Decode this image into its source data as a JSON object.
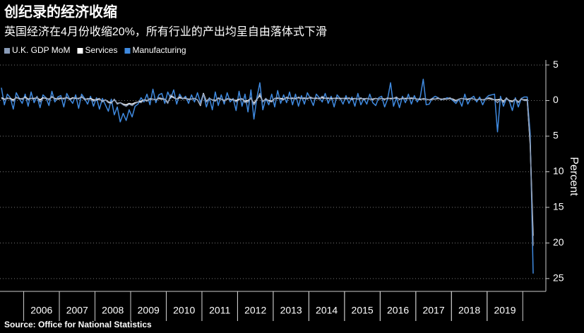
{
  "chart_data": {
    "type": "line",
    "title": "创纪录的经济收缩",
    "subtitle": "英国经济在4月份收缩20%，所有行业的产出均呈自由落体式下滑",
    "y_label": "Percent",
    "source": "Source: Office for National Statistics",
    "categories": [
      null,
      null,
      null,
      null,
      null,
      null,
      null,
      null,
      null,
      null,
      null,
      null,
      null,
      null,
      "2006",
      null,
      null,
      null,
      null,
      null,
      null,
      null,
      null,
      null,
      null,
      null,
      "2007",
      null,
      null,
      null,
      null,
      null,
      null,
      null,
      null,
      null,
      null,
      null,
      "2008",
      null,
      null,
      null,
      null,
      null,
      null,
      null,
      null,
      null,
      null,
      null,
      "2009",
      null,
      null,
      null,
      null,
      null,
      null,
      null,
      null,
      null,
      null,
      null,
      "2010",
      null,
      null,
      null,
      null,
      null,
      null,
      null,
      null,
      null,
      null,
      null,
      "2011",
      null,
      null,
      null,
      null,
      null,
      null,
      null,
      null,
      null,
      null,
      null,
      "2012",
      null,
      null,
      null,
      null,
      null,
      null,
      null,
      null,
      null,
      null,
      null,
      "2013",
      null,
      null,
      null,
      null,
      null,
      null,
      null,
      null,
      null,
      null,
      null,
      "2014",
      null,
      null,
      null,
      null,
      null,
      null,
      null,
      null,
      null,
      null,
      null,
      "2015",
      null,
      null,
      null,
      null,
      null,
      null,
      null,
      null,
      null,
      null,
      null,
      "2016",
      null,
      null,
      null,
      null,
      null,
      null,
      null,
      null,
      null,
      null,
      null,
      "2017",
      null,
      null,
      null,
      null,
      null,
      null,
      null,
      null,
      null,
      null,
      null,
      "2018",
      null,
      null,
      null,
      null,
      null,
      null,
      null,
      null,
      null,
      null,
      null,
      "2019",
      null,
      null,
      null,
      null,
      null,
      null,
      null,
      null,
      null
    ],
    "series": [
      {
        "name": "U.K. GDP MoM",
        "color": "#8a9cb8",
        "values": [
          0.3,
          0.1,
          0.4,
          0.2,
          -0.1,
          0.5,
          0.2,
          0.3,
          0.4,
          0.1,
          0.3,
          0.2,
          0.5,
          -0.2,
          0.3,
          0.4,
          0.1,
          0.6,
          0.2,
          0.3,
          0.4,
          0.2,
          0.5,
          0.1,
          0.3,
          0.4,
          0.2,
          0.6,
          0.1,
          0.3,
          0.2,
          -0.1,
          0.2,
          0.3,
          -0.2,
          0.1,
          -0.3,
          -0.4,
          0.2,
          -0.5,
          -0.3,
          -0.6,
          -0.8,
          -0.5,
          -0.7,
          -0.4,
          -0.2,
          -0.3,
          0.1,
          -0.1,
          0.3,
          0.2,
          0.1,
          0.4,
          0.3,
          0.2,
          -0.4,
          0.8,
          0.5,
          0.2,
          0.6,
          0.3,
          0.4,
          0.1,
          0.2,
          0.3,
          0.1,
          -0.6,
          0.9,
          -0.2,
          0.3,
          0.1,
          -0.1,
          0.4,
          0.2,
          -0.1,
          0.3,
          0.1,
          0.2,
          -0.2,
          0.1,
          0.3,
          -0.3,
          -0.2,
          0.4,
          -0.6,
          0.1,
          1.0,
          -0.2,
          0.3,
          -0.1,
          -0.2,
          0.3,
          0.4,
          0.2,
          0.1,
          0.5,
          0.3,
          0.4,
          0.2,
          0.5,
          0.3,
          0.4,
          0.2,
          0.5,
          0.3,
          0.4,
          0.2,
          0.6,
          0.3,
          0.4,
          0.2,
          0.3,
          0.4,
          0.2,
          0.3,
          0.2,
          0.4,
          0.1,
          0.3,
          0.2,
          0.4,
          0.1,
          0.3,
          0.2,
          0.1,
          0.3,
          0.2,
          0.3,
          0.1,
          0.4,
          0.2,
          0.3,
          0.5,
          0.1,
          0.4,
          0.2,
          0.3,
          0.4,
          0.3,
          0.2,
          0.1,
          0.3,
          0.2,
          0.1,
          0.3,
          0.2,
          0.4,
          0.1,
          0.3,
          0.2,
          0.4,
          0.1,
          -0.1,
          0.2,
          0.3,
          0.2,
          0.1,
          0.3,
          0.2,
          0.1,
          0.2,
          0.1,
          0.2,
          0.4,
          0.3,
          0.1,
          -0.3,
          0.2,
          -0.3,
          0.4,
          -0.1,
          -0.2,
          0.2,
          -0.3,
          0.3,
          0.0,
          0.0,
          -5.8,
          -20.4
        ]
      },
      {
        "name": "Services",
        "color": "#ffffff",
        "values": [
          0.4,
          0.2,
          0.3,
          0.3,
          0.1,
          0.4,
          0.3,
          0.2,
          0.5,
          0.2,
          0.3,
          0.3,
          0.4,
          0.1,
          0.4,
          0.3,
          0.2,
          0.5,
          0.3,
          0.2,
          0.3,
          0.3,
          0.4,
          0.2,
          0.4,
          0.3,
          0.3,
          0.5,
          0.2,
          0.2,
          0.3,
          0.1,
          0.1,
          0.2,
          -0.1,
          0.1,
          -0.2,
          -0.3,
          0.1,
          -0.4,
          -0.3,
          -0.5,
          -0.6,
          -0.4,
          -0.5,
          -0.3,
          -0.2,
          -0.1,
          0.1,
          0.0,
          0.2,
          0.2,
          0.1,
          0.3,
          0.2,
          0.2,
          -0.3,
          0.6,
          0.4,
          0.2,
          0.4,
          0.3,
          0.3,
          0.2,
          0.2,
          0.3,
          0.1,
          -0.7,
          1.0,
          -0.1,
          0.3,
          0.1,
          0.0,
          0.3,
          0.2,
          0.0,
          0.2,
          0.2,
          0.1,
          0.0,
          0.2,
          0.2,
          -0.1,
          0.0,
          0.3,
          -0.4,
          0.2,
          0.7,
          -0.1,
          0.2,
          0.0,
          -0.1,
          0.3,
          0.3,
          0.3,
          0.2,
          0.4,
          0.3,
          0.3,
          0.3,
          0.4,
          0.3,
          0.3,
          0.3,
          0.4,
          0.3,
          0.3,
          0.3,
          0.4,
          0.3,
          0.3,
          0.3,
          0.3,
          0.3,
          0.3,
          0.3,
          0.3,
          0.3,
          0.2,
          0.3,
          0.2,
          0.3,
          0.2,
          0.3,
          0.2,
          0.2,
          0.3,
          0.2,
          0.3,
          0.2,
          0.3,
          0.3,
          0.3,
          0.4,
          0.2,
          0.3,
          0.3,
          0.3,
          0.3,
          0.3,
          0.2,
          0.2,
          0.2,
          0.2,
          0.1,
          0.2,
          0.2,
          0.3,
          0.2,
          0.2,
          0.2,
          0.3,
          0.2,
          0.0,
          0.2,
          0.3,
          0.2,
          0.2,
          0.3,
          0.2,
          0.1,
          0.2,
          0.1,
          0.2,
          0.3,
          0.2,
          0.1,
          0.1,
          0.2,
          -0.1,
          0.3,
          0.0,
          -0.1,
          0.2,
          -0.2,
          0.2,
          0.1,
          0.1,
          -6.2,
          -19.0
        ]
      },
      {
        "name": "Manufacturing",
        "color": "#3f8ae0",
        "values": [
          1.8,
          -0.6,
          0.9,
          0.4,
          -1.2,
          1.1,
          0.3,
          -0.4,
          0.9,
          -0.8,
          1.2,
          -0.3,
          0.6,
          -1.0,
          0.8,
          0.4,
          -0.7,
          1.3,
          -0.2,
          0.5,
          0.7,
          -0.9,
          1.0,
          0.2,
          -0.4,
          0.8,
          -1.1,
          0.9,
          0.3,
          -0.5,
          0.6,
          -0.8,
          0.4,
          -1.2,
          0.3,
          -0.6,
          -1.5,
          0.2,
          -2.0,
          -0.9,
          -3.0,
          -1.8,
          -2.8,
          -1.3,
          -2.3,
          -0.8,
          -0.5,
          0.4,
          -0.2,
          0.9,
          -0.6,
          1.6,
          -0.3,
          0.8,
          1.0,
          -0.4,
          1.2,
          0.3,
          1.5,
          -0.5,
          0.9,
          0.2,
          0.6,
          -0.4,
          0.8,
          -0.2,
          1.1,
          -0.3,
          1.0,
          -0.9,
          0.4,
          -1.3,
          1.2,
          -0.7,
          0.8,
          -0.5,
          1.1,
          -0.2,
          0.3,
          -1.4,
          1.3,
          -0.8,
          0.9,
          -1.6,
          1.5,
          -2.6,
          0.4,
          2.5,
          -1.3,
          0.3,
          -0.6,
          0.9,
          -0.9,
          1.4,
          -0.4,
          0.8,
          -0.3,
          1.2,
          -0.6,
          0.9,
          -0.8,
          0.7,
          -0.5,
          1.1,
          0.3,
          -0.7,
          0.9,
          0.4,
          -0.2,
          1.0,
          -0.4,
          0.6,
          -0.9,
          0.8,
          0.3,
          -0.5,
          0.7,
          -0.4,
          0.5,
          -0.8,
          1.0,
          -0.6,
          0.3,
          -0.5,
          0.9,
          -0.3,
          -0.7,
          0.4,
          0.6,
          -0.9,
          0.2,
          2.5,
          -0.8,
          0.4,
          -1.0,
          0.6,
          -0.3,
          0.9,
          -0.5,
          0.7,
          -0.2,
          0.5,
          3.0,
          -0.6,
          -0.5,
          0.3,
          0.6,
          0.4,
          0.1,
          0.2,
          0.4,
          0.3,
          0.0,
          -0.4,
          0.2,
          -0.8,
          0.9,
          -0.5,
          0.3,
          0.6,
          -0.2,
          0.5,
          -0.6,
          0.3,
          0.7,
          0.8,
          0.9,
          -4.4,
          0.6,
          -0.8,
          0.3,
          -0.1,
          -1.4,
          0.4,
          -0.9,
          0.3,
          0.5,
          0.5,
          -4.6,
          -24.3
        ]
      }
    ],
    "ylim": [
      -26.8,
      5.7
    ],
    "yticks": [
      5,
      0,
      {
        "value": -5,
        "label": "5"
      },
      {
        "value": -10,
        "label": "10"
      },
      {
        "value": -15,
        "label": "15"
      },
      {
        "value": -20,
        "label": "20"
      },
      {
        "value": -25,
        "label": "25"
      }
    ],
    "grid": true
  }
}
